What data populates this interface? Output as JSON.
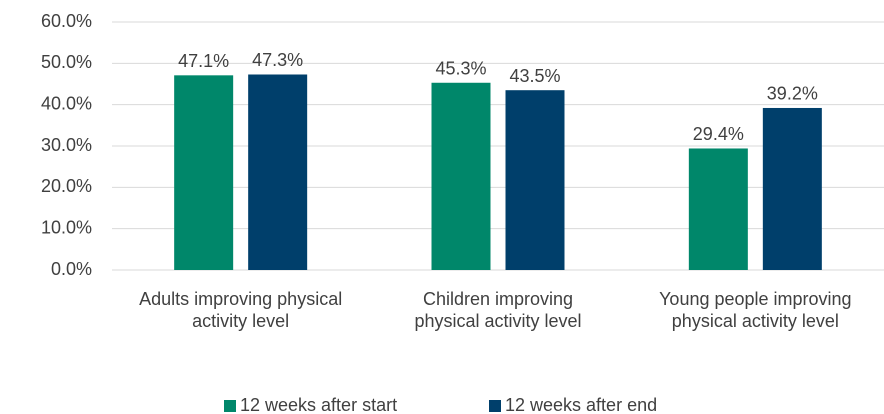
{
  "chart_data": {
    "type": "bar",
    "categories": [
      "Adults improving physical activity level",
      "Children improving physical activity level",
      "Young people improving physical activity level"
    ],
    "series": [
      {
        "name": "12 weeks after start",
        "color": "#00876a",
        "values": [
          47.1,
          45.3,
          29.4
        ],
        "value_labels": [
          "47.1%",
          "45.3%",
          "29.4%"
        ]
      },
      {
        "name": "12 weeks after end",
        "color": "#003f6b",
        "values": [
          47.3,
          43.5,
          39.2
        ],
        "value_labels": [
          "47.3%",
          "43.5%",
          "39.2%"
        ]
      }
    ],
    "ylim": [
      0,
      60
    ],
    "yticks": [
      {
        "value": 0,
        "label": "0.0%"
      },
      {
        "value": 10,
        "label": "10.0%"
      },
      {
        "value": 20,
        "label": "20.0%"
      },
      {
        "value": 30,
        "label": "30.0%"
      },
      {
        "value": 40,
        "label": "40.0%"
      },
      {
        "value": 50,
        "label": "50.0%"
      },
      {
        "value": 60,
        "label": "60.0%"
      }
    ],
    "grid": true,
    "legend": "bottom"
  }
}
